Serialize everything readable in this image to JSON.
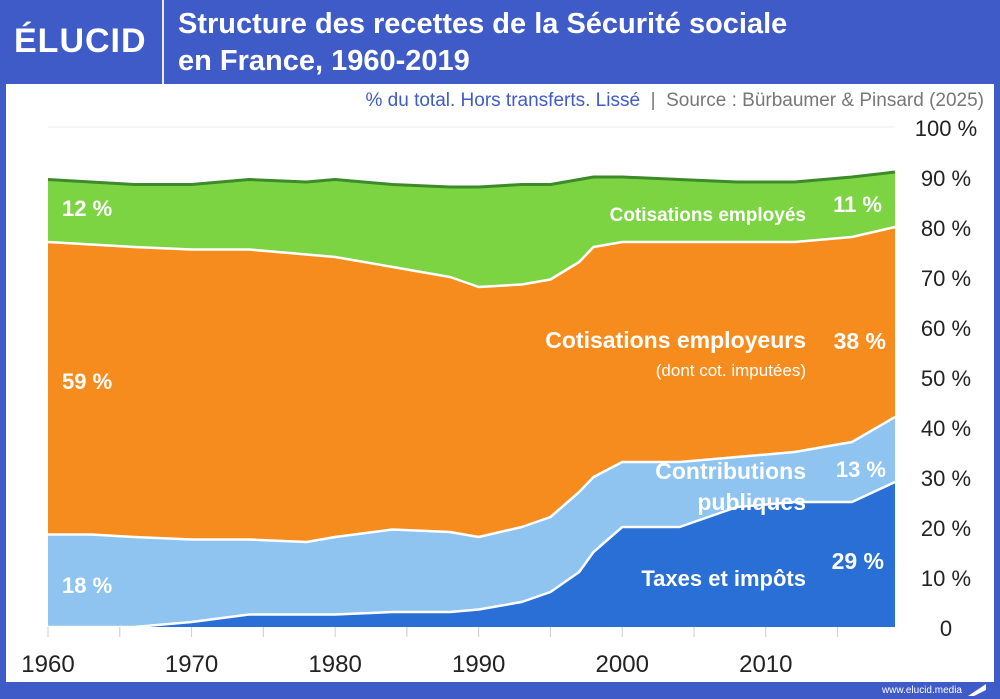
{
  "header": {
    "logo": "ÉLUCID",
    "title_line1": "Structure des recettes de la Sécurité sociale",
    "title_line2": "en France, 1960-2019"
  },
  "subtitle": {
    "note": "% du total. Hors transferts. Lissé",
    "separator": "|",
    "source": "Source : Bürbaumer & Pinsard (2025)"
  },
  "footer": {
    "url": "www.elucid.media"
  },
  "chart_data": {
    "type": "area",
    "stacked": true,
    "title": "Structure des recettes de la Sécurité sociale en France, 1960-2019",
    "xlim": [
      1960,
      2019
    ],
    "ylim": [
      0,
      100
    ],
    "x_ticks": [
      "1960",
      "1970",
      "1980",
      "1990",
      "2000",
      "2010"
    ],
    "y_ticks": [
      "0",
      "10 %",
      "20 %",
      "30 %",
      "40 %",
      "50 %",
      "60 %",
      "70 %",
      "80 %",
      "90 %",
      "100 %"
    ],
    "x": [
      1960,
      1963,
      1966,
      1970,
      1974,
      1978,
      1980,
      1984,
      1988,
      1990,
      1993,
      1995,
      1997,
      1998,
      2000,
      2004,
      2008,
      2012,
      2016,
      2019
    ],
    "series": [
      {
        "name": "Taxes et impôts",
        "color": "#2a6fd6",
        "values": [
          0,
          0,
          0,
          1,
          2.5,
          2.5,
          2.5,
          3,
          3,
          3.5,
          5,
          7,
          11,
          15,
          20,
          20,
          24,
          25,
          25,
          29
        ],
        "label_end": "29 %"
      },
      {
        "name": "Contributions publiques",
        "color": "#8fc3f0",
        "values": [
          18.5,
          18.5,
          18,
          16.5,
          15,
          14.5,
          15.5,
          16.5,
          16,
          14.5,
          15,
          15,
          16,
          15,
          13,
          13,
          10,
          10,
          12,
          13
        ],
        "label_start": "18 %",
        "label_end": "13 %",
        "name_line1": "Contributions",
        "name_line2": "publiques"
      },
      {
        "name": "Cotisations employeurs",
        "color": "#f78c1e",
        "values": [
          58.5,
          58,
          58,
          58,
          58,
          57.5,
          56,
          52.5,
          51,
          50,
          48.5,
          47.5,
          46,
          46,
          44,
          44,
          43,
          42,
          41,
          38
        ],
        "label_start": "59 %",
        "label_end": "38 %",
        "note": "(dont cot. imputées)"
      },
      {
        "name": "Cotisations employés",
        "color": "#7dd443",
        "values": [
          12.5,
          12.5,
          12.5,
          13,
          14,
          14.5,
          15.5,
          16.5,
          18,
          20,
          20,
          19,
          16.5,
          14,
          13,
          12.5,
          12,
          12,
          12,
          11
        ],
        "label_start": "12 %",
        "label_end": "11 %"
      }
    ],
    "top_line_color": "#3d8a2a",
    "grid": false
  }
}
